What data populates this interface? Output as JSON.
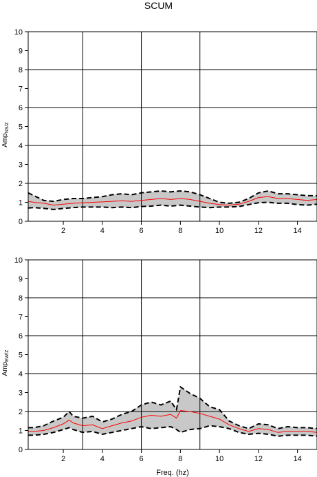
{
  "title": "SCUM",
  "chart_data": [
    {
      "type": "line",
      "panel": "top",
      "ylabel": "AmpNS/Z",
      "ylabel_main": "Amp",
      "ylabel_sub": "NS/Z",
      "xlabel": "",
      "xlim": [
        0.2,
        15.0
      ],
      "ylim": [
        0,
        10
      ],
      "xticks": [
        2,
        4,
        6,
        8,
        10,
        12,
        14
      ],
      "yticks": [
        0,
        1,
        2,
        3,
        4,
        5,
        6,
        7,
        8,
        9,
        10
      ],
      "vgrid": [
        3,
        6,
        9
      ],
      "hgrid": [
        2,
        4,
        6,
        8,
        10
      ],
      "x": [
        0.2,
        0.5,
        1.0,
        1.5,
        2.0,
        2.5,
        3.0,
        3.5,
        4.0,
        4.5,
        5.0,
        5.5,
        6.0,
        6.5,
        7.0,
        7.5,
        8.0,
        8.5,
        9.0,
        9.5,
        10.0,
        10.5,
        11.0,
        11.5,
        12.0,
        12.5,
        13.0,
        13.5,
        14.0,
        14.5,
        15.0
      ],
      "series": [
        {
          "role": "mean",
          "color": "#ff0000",
          "values": [
            1.05,
            1.0,
            0.95,
            0.85,
            0.9,
            0.95,
            0.98,
            1.0,
            1.02,
            1.05,
            1.08,
            1.05,
            1.1,
            1.15,
            1.2,
            1.15,
            1.2,
            1.15,
            1.05,
            0.95,
            0.88,
            0.85,
            0.9,
            1.05,
            1.25,
            1.3,
            1.2,
            1.2,
            1.15,
            1.1,
            1.15
          ]
        },
        {
          "role": "upper",
          "color": "#000000",
          "values": [
            1.5,
            1.35,
            1.1,
            1.05,
            1.15,
            1.2,
            1.2,
            1.25,
            1.3,
            1.4,
            1.45,
            1.4,
            1.5,
            1.55,
            1.6,
            1.55,
            1.6,
            1.55,
            1.4,
            1.2,
            1.0,
            0.95,
            1.0,
            1.2,
            1.5,
            1.6,
            1.45,
            1.45,
            1.4,
            1.35,
            1.35
          ]
        },
        {
          "role": "lower",
          "color": "#000000",
          "values": [
            0.7,
            0.72,
            0.68,
            0.62,
            0.68,
            0.72,
            0.75,
            0.75,
            0.75,
            0.72,
            0.75,
            0.72,
            0.78,
            0.8,
            0.85,
            0.8,
            0.85,
            0.8,
            0.75,
            0.72,
            0.75,
            0.75,
            0.78,
            0.88,
            0.98,
            1.0,
            0.95,
            0.95,
            0.88,
            0.85,
            0.9
          ]
        }
      ],
      "band_fill": "#c8c8c8"
    },
    {
      "type": "line",
      "panel": "bottom",
      "ylabel": "AmpEW/Z",
      "ylabel_main": "Amp",
      "ylabel_sub": "EW/Z",
      "xlabel": "Freq. (hz)",
      "xlim": [
        0.2,
        15.0
      ],
      "ylim": [
        0,
        10
      ],
      "xticks": [
        2,
        4,
        6,
        8,
        10,
        12,
        14
      ],
      "yticks": [
        0,
        1,
        2,
        3,
        4,
        5,
        6,
        7,
        8,
        9,
        10
      ],
      "vgrid": [
        3,
        6,
        9
      ],
      "hgrid": [
        2,
        4,
        6,
        8,
        10
      ],
      "x": [
        0.2,
        0.5,
        1.0,
        1.5,
        2.0,
        2.3,
        2.5,
        3.0,
        3.5,
        4.0,
        4.5,
        5.0,
        5.5,
        6.0,
        6.5,
        7.0,
        7.5,
        7.8,
        8.0,
        8.5,
        9.0,
        9.5,
        10.0,
        10.5,
        11.0,
        11.5,
        12.0,
        12.5,
        13.0,
        13.5,
        14.0,
        14.5,
        15.0
      ],
      "series": [
        {
          "role": "mean",
          "color": "#ff0000",
          "values": [
            0.95,
            0.95,
            1.0,
            1.15,
            1.35,
            1.55,
            1.4,
            1.25,
            1.3,
            1.1,
            1.25,
            1.4,
            1.5,
            1.7,
            1.8,
            1.75,
            1.85,
            1.65,
            2.05,
            2.0,
            1.9,
            1.75,
            1.6,
            1.3,
            1.1,
            0.95,
            1.1,
            1.05,
            0.9,
            0.95,
            0.95,
            0.95,
            0.9
          ]
        },
        {
          "role": "upper",
          "color": "#000000",
          "values": [
            1.15,
            1.15,
            1.25,
            1.5,
            1.7,
            2.0,
            1.75,
            1.65,
            1.75,
            1.45,
            1.6,
            1.85,
            2.0,
            2.35,
            2.5,
            2.35,
            2.55,
            2.1,
            3.3,
            2.95,
            2.7,
            2.25,
            2.1,
            1.5,
            1.25,
            1.1,
            1.35,
            1.3,
            1.1,
            1.2,
            1.15,
            1.15,
            1.1
          ]
        },
        {
          "role": "lower",
          "color": "#000000",
          "values": [
            0.75,
            0.75,
            0.8,
            0.9,
            1.05,
            1.15,
            1.05,
            0.9,
            0.95,
            0.8,
            0.9,
            1.0,
            1.1,
            1.2,
            1.1,
            1.15,
            1.2,
            1.05,
            0.9,
            1.05,
            1.1,
            1.25,
            1.2,
            1.1,
            0.9,
            0.8,
            0.85,
            0.8,
            0.7,
            0.75,
            0.75,
            0.75,
            0.7
          ]
        }
      ],
      "band_fill": "#c8c8c8"
    }
  ]
}
